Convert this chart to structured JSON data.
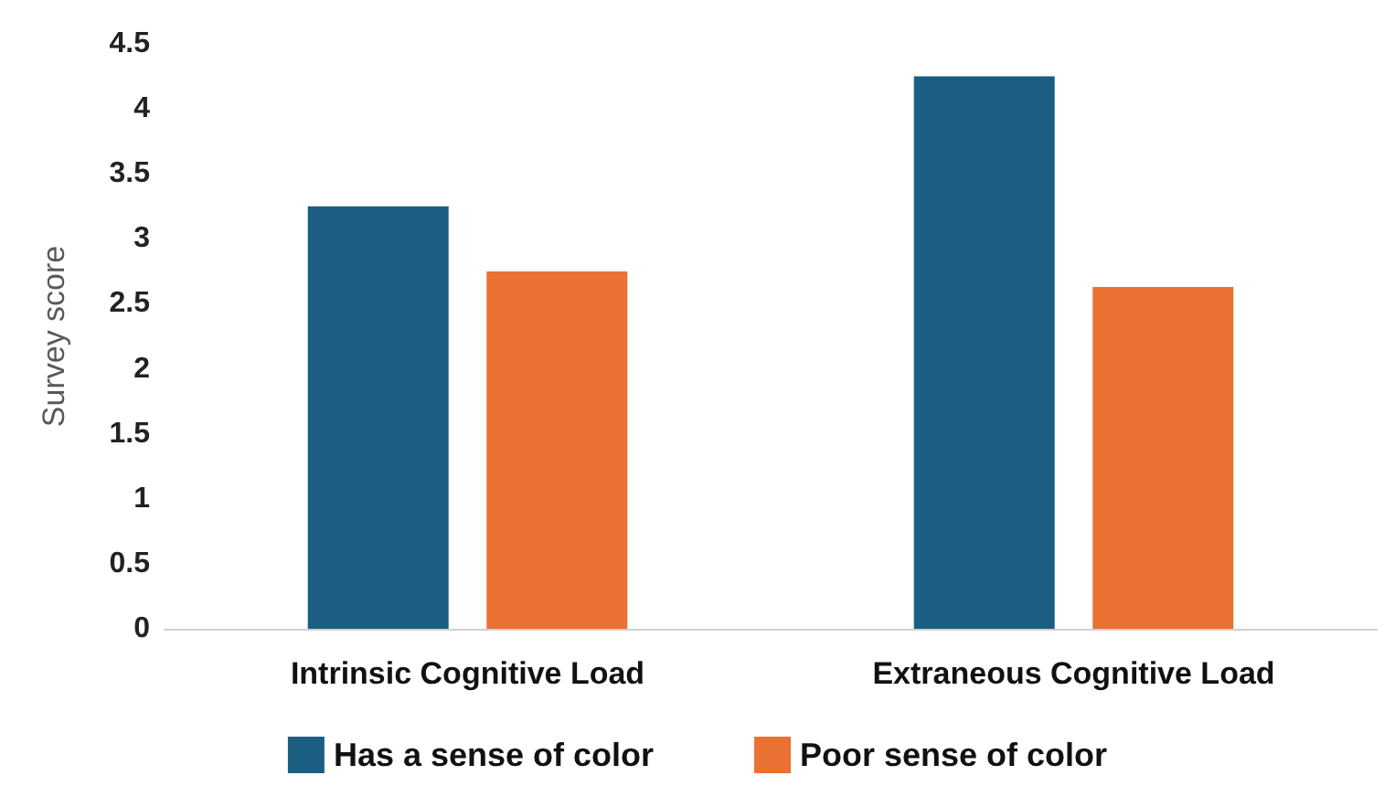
{
  "chart_data": {
    "type": "bar",
    "ylabel": "Survey score",
    "categories": [
      "Intrinsic Cognitive Load",
      "Extraneous Cognitive Load"
    ],
    "series": [
      {
        "name": "Has a sense of color",
        "color": "#1a5f82",
        "values": [
          3.25,
          4.25
        ]
      },
      {
        "name": "Poor sense of color",
        "color": "#e97132",
        "values": [
          2.75,
          2.63
        ]
      }
    ],
    "ylim": [
      0,
      4.5
    ],
    "yticks": [
      0,
      0.5,
      1,
      1.5,
      2,
      2.5,
      3,
      3.5,
      4,
      4.5
    ],
    "grid": false,
    "legend": "bottom"
  }
}
